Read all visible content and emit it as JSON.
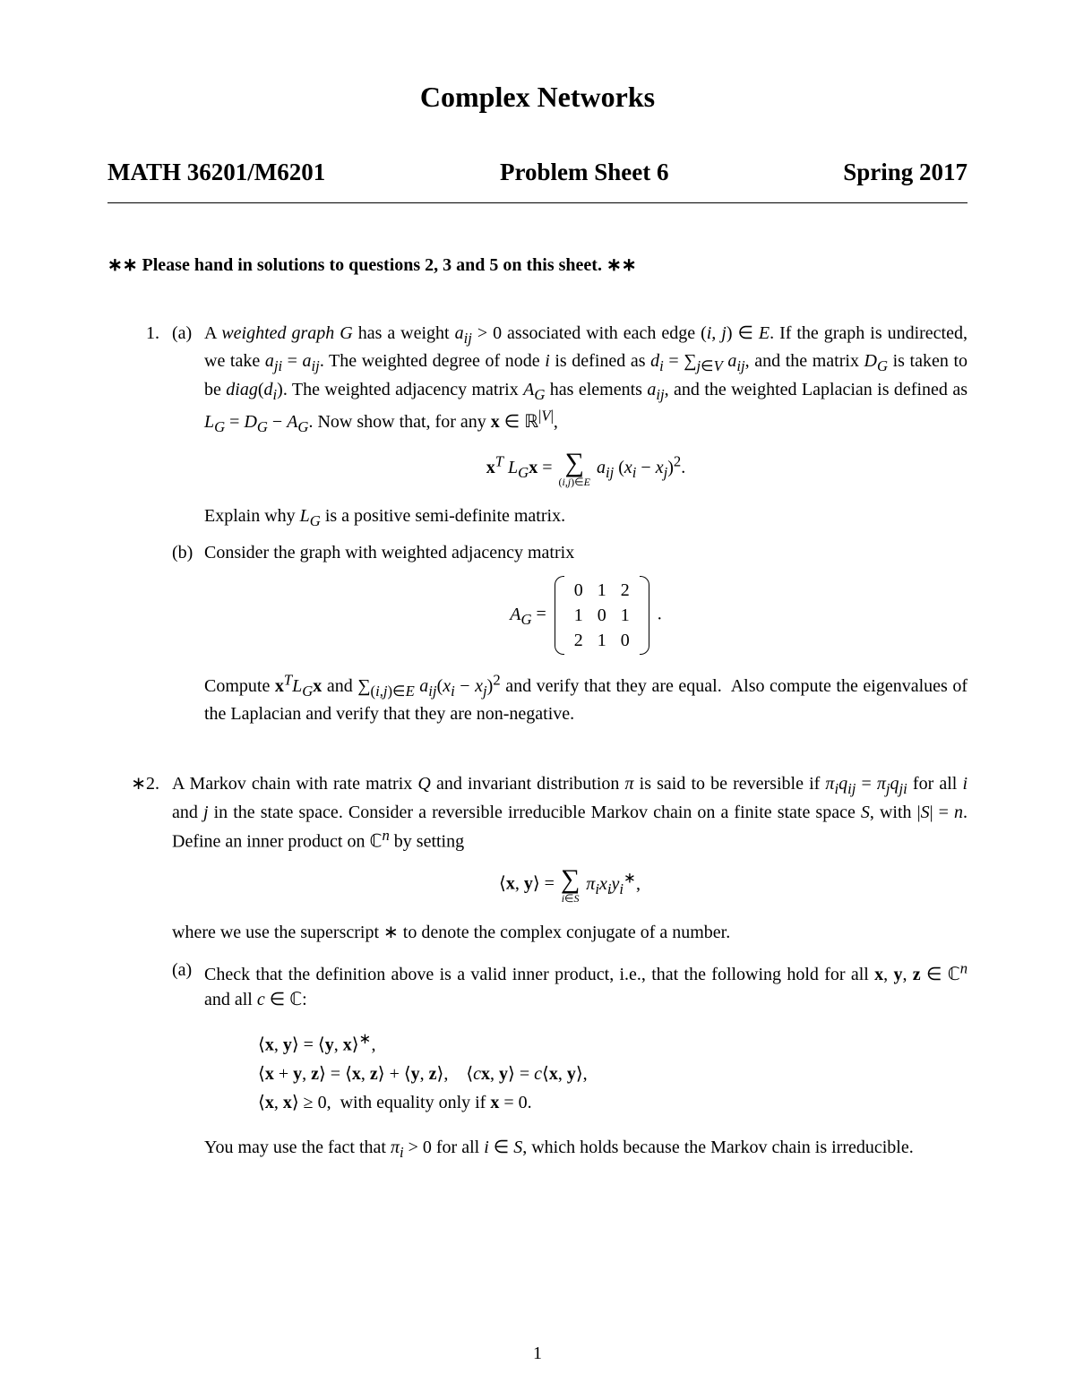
{
  "title": "Complex Networks",
  "course": "MATH 36201/M6201",
  "sheet": "Problem Sheet 6",
  "term": "Spring 2017",
  "instruction": "∗∗ Please hand in solutions to questions 2, 3 and 5 on this sheet. ∗∗",
  "p1": {
    "num": "1.",
    "a_label": "(a)",
    "a_text": "A <i>weighted graph G</i> has a weight <i>a<sub>ij</sub></i> &gt; 0 associated with each edge (<i>i, j</i>) ∈ <i>E</i>. If the graph is undirected, we take <i>a<sub>ji</sub></i> = <i>a<sub>ij</sub></i>. The weighted degree of node <i>i</i> is defined as <i>d<sub>i</sub></i> = ∑<sub><i>j</i>∈<i>V</i></sub> <i>a<sub>ij</sub></i>, and the matrix <i>D<sub>G</sub></i> is taken to be <i>diag</i>(<i>d<sub>i</sub></i>). The weighted adjacency matrix <i>A<sub>G</sub></i> has elements <i>a<sub>ij</sub></i>, and the weighted Laplacian is defined as <i>L<sub>G</sub></i> = <i>D<sub>G</sub></i> − <i>A<sub>G</sub></i>. Now show that, for any <b>x</b> ∈ ℝ<sup>|<i>V</i>|</sup>,",
    "a_post": "Explain why <i>L<sub>G</sub></i> is a positive semi-definite matrix.",
    "b_label": "(b)",
    "b_text": "Consider the graph with weighted adjacency matrix",
    "b_post": "Compute <b>x</b><sup><i>T</i></sup><i>L<sub>G</sub></i><b>x</b> and ∑<sub>(<i>i,j</i>)∈<i>E</i></sub> <i>a<sub>ij</sub></i>(<i>x<sub>i</sub></i> − <i>x<sub>j</sub></i>)<sup>2</sup> and verify that they are equal.&nbsp; Also compute the eigenvalues of the Laplacian and verify that they are non-negative.",
    "matrix": [
      [
        "0",
        "1",
        "2"
      ],
      [
        "1",
        "0",
        "1"
      ],
      [
        "2",
        "1",
        "0"
      ]
    ]
  },
  "p2": {
    "num": "∗2.",
    "intro": "A Markov chain with rate matrix <i>Q</i> and invariant distribution <i>π</i> is said to be reversible if <i>π<sub>i</sub>q<sub>ij</sub></i> = <i>π<sub>j</sub>q<sub>ji</sub></i> for all <i>i</i> and <i>j</i> in the state space. Consider a reversible irreducible Markov chain on a finite state space <i>S</i>, with |<i>S</i>| = <i>n</i>. Define an inner product on ℂ<sup><i>n</i></sup> by setting",
    "after_eq": "where we use the superscript ∗ to denote the complex conjugate of a number.",
    "a_label": "(a)",
    "a_text": "Check that the definition above is a valid inner product, i.e., that the following hold for all <b>x</b>, <b>y</b>, <b>z</b> ∈ ℂ<sup><i>n</i></sup> and all <i>c</i> ∈ ℂ:",
    "eq_lines": {
      "l1": "⟨<b>x</b>, <b>y</b>⟩ = ⟨<b>y</b>, <b>x</b>⟩<sup>∗</sup>,",
      "l2": "⟨<b>x</b> + <b>y</b>, <b>z</b>⟩ = ⟨<b>x</b>, <b>z</b>⟩ + ⟨<b>y</b>, <b>z</b>⟩,&nbsp;&nbsp;&nbsp; ⟨<i>c</i><b>x</b>, <b>y</b>⟩ = <i>c</i>⟨<b>x</b>, <b>y</b>⟩,",
      "l3": "⟨<b>x</b>, <b>x</b>⟩ ≥ 0,&nbsp; with equality only if <b>x</b> = 0."
    },
    "a_post": "You may use the fact that <i>π<sub>i</sub></i> &gt; 0 for all <i>i</i> ∈ <i>S</i>, which holds because the Markov chain is irreducible."
  },
  "eq1": {
    "lhs": "<b>x</b><sup><i>T</i></sup> <i>L<sub>G</sub></i><b>x</b> =",
    "sum_lim": "(<i>i,j</i>)∈<i>E</i>",
    "rhs": " <i>a<sub>ij</sub></i> (<i>x<sub>i</sub></i> − <i>x<sub>j</sub></i>)<sup>2</sup>."
  },
  "eq2": {
    "lhs": "<i>A<sub>G</sub></i> = ",
    "tail": " ."
  },
  "eq3": {
    "lhs": "⟨<b>x</b>, <b>y</b>⟩ = ",
    "sum_lim": "<i>i</i>∈<i>S</i>",
    "rhs": " <i>π<sub>i</sub>x<sub>i</sub>y<sub>i</sub></i><sup>∗</sup>,"
  },
  "page_number": "1"
}
